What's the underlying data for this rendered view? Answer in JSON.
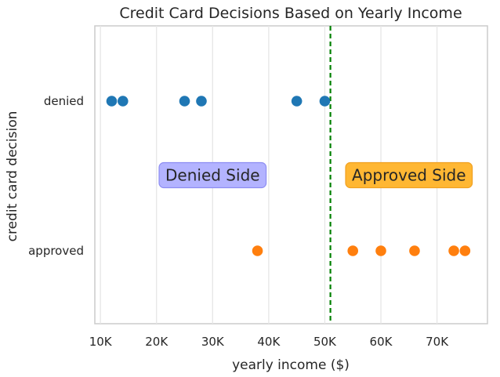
{
  "chart_data": {
    "type": "scatter",
    "title": "Credit Card Decisions Based on Yearly Income",
    "xlabel": "yearly income ($)",
    "ylabel": "credit card decision",
    "xlim": [
      9000,
      79000
    ],
    "x_ticks": [
      {
        "value": 10000,
        "label": "10K"
      },
      {
        "value": 20000,
        "label": "20K"
      },
      {
        "value": 30000,
        "label": "30K"
      },
      {
        "value": 40000,
        "label": "40K"
      },
      {
        "value": 50000,
        "label": "50K"
      },
      {
        "value": 60000,
        "label": "60K"
      },
      {
        "value": 70000,
        "label": "70K"
      }
    ],
    "categories": [
      "denied",
      "approved"
    ],
    "grid": true,
    "series": [
      {
        "category": "denied",
        "color": "#1f77b4",
        "x": [
          12000,
          14000,
          25000,
          28000,
          45000,
          50000
        ]
      },
      {
        "category": "approved",
        "color": "#ff7f0e",
        "x": [
          38000,
          55000,
          60000,
          66000,
          73000,
          75000
        ]
      }
    ],
    "threshold": {
      "x": 51000,
      "color": "#008000"
    },
    "annotations": [
      {
        "text": "Denied Side",
        "x": 30000,
        "y_between": [
          "denied",
          "approved"
        ],
        "background": "#b3b3ff",
        "border": "#8c8cf2"
      },
      {
        "text": "Approved Side",
        "x": 65000,
        "y_between": [
          "denied",
          "approved"
        ],
        "background": "#ffb733",
        "border": "#f0a020"
      }
    ]
  }
}
